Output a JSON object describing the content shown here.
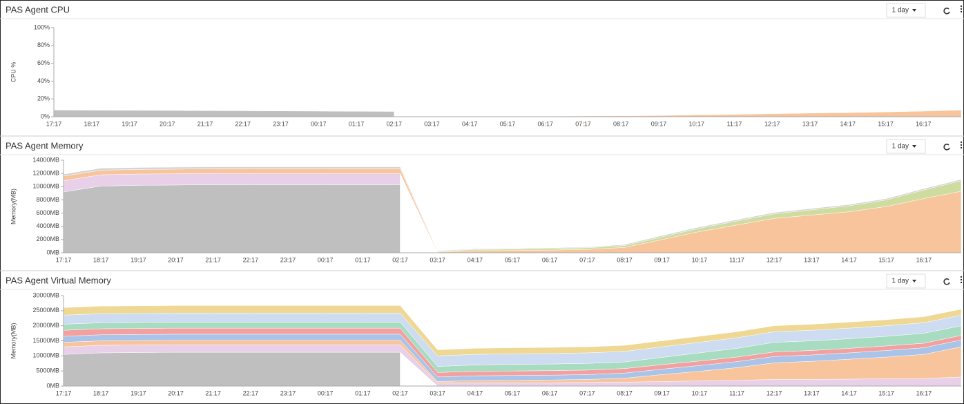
{
  "chart_data": [
    {
      "type": "area",
      "stacked": true,
      "title": "PAS Agent CPU",
      "y_label": "CPU %",
      "range": "1 day",
      "categories": [
        "17:17",
        "18:17",
        "19:17",
        "20:17",
        "21:17",
        "22:17",
        "23:17",
        "00:17",
        "01:17",
        "02:17",
        "03:17",
        "04:17",
        "05:17",
        "06:17",
        "07:17",
        "08:17",
        "09:17",
        "10:17",
        "11:17",
        "12:17",
        "13:17",
        "14:17",
        "15:17",
        "16:17",
        null
      ],
      "ylim": [
        0,
        100
      ],
      "yticks": [
        {
          "value": 0,
          "label": "0%"
        },
        {
          "value": 20,
          "label": "20%"
        },
        {
          "value": 40,
          "label": "40%"
        },
        {
          "value": 60,
          "label": "60%"
        },
        {
          "value": 80,
          "label": "80%"
        },
        {
          "value": 100,
          "label": "100%"
        }
      ],
      "grid": false,
      "series": [
        {
          "color": "#bfbfbf",
          "values": [
            7.5,
            7.3,
            7.2,
            7,
            6.8,
            6.6,
            6.4,
            6.2,
            6,
            5.8,
            null,
            null,
            null,
            null,
            null,
            null,
            null,
            null,
            null,
            null,
            null,
            null,
            null,
            null,
            null
          ]
        },
        {
          "color": "#f8c49c",
          "values": [
            null,
            null,
            null,
            null,
            null,
            null,
            null,
            null,
            null,
            null,
            0.3,
            0.4,
            0.5,
            0.6,
            0.8,
            1,
            1.3,
            2,
            2.6,
            3.3,
            4,
            4.6,
            5.3,
            6.2,
            7.5
          ]
        }
      ]
    },
    {
      "type": "area",
      "stacked": true,
      "title": "PAS Agent Memory",
      "y_label": "Memory(MB)",
      "range": "1 day",
      "categories": [
        "17:17",
        "18:17",
        "19:17",
        "20:17",
        "21:17",
        "22:17",
        "23:17",
        "00:17",
        "01:17",
        "02:17",
        "03:17",
        "04:17",
        "05:17",
        "06:17",
        "07:17",
        "08:17",
        "09:17",
        "10:17",
        "11:17",
        "12:17",
        "13:17",
        "14:17",
        "15:17",
        "16:17",
        null
      ],
      "ylim": [
        0,
        14000
      ],
      "yticks": [
        {
          "value": 0,
          "label": "0MB"
        },
        {
          "value": 2000,
          "label": "2000MB"
        },
        {
          "value": 4000,
          "label": "4000MB"
        },
        {
          "value": 6000,
          "label": "6000MB"
        },
        {
          "value": 8000,
          "label": "8000MB"
        },
        {
          "value": 10000,
          "label": "10000MB"
        },
        {
          "value": 12000,
          "label": "12000MB"
        },
        {
          "value": 14000,
          "label": "14000MB"
        }
      ],
      "grid": false,
      "series": [
        {
          "color": "#bfbfbf",
          "values": [
            9200,
            10100,
            10200,
            10250,
            10300,
            10300,
            10300,
            10300,
            10300,
            10300,
            null,
            null,
            null,
            null,
            null,
            null,
            null,
            null,
            null,
            null,
            null,
            null,
            null,
            null,
            null
          ]
        },
        {
          "color": "#e8d0e8",
          "values": [
            1700,
            1700,
            1700,
            1700,
            1700,
            1700,
            1700,
            1700,
            1700,
            1700,
            null,
            null,
            null,
            null,
            null,
            null,
            null,
            null,
            null,
            null,
            null,
            null,
            null,
            null,
            null
          ]
        },
        {
          "color": "#f8c49c",
          "values": [
            700,
            700,
            700,
            700,
            700,
            700,
            700,
            700,
            700,
            700,
            100,
            300,
            350,
            400,
            500,
            800,
            2000,
            3200,
            4200,
            5200,
            5700,
            6200,
            7000,
            8200,
            9300
          ]
        },
        {
          "color": "#cfdca0",
          "values": [
            null,
            null,
            null,
            null,
            null,
            null,
            null,
            null,
            null,
            null,
            100,
            200,
            200,
            250,
            250,
            300,
            400,
            500,
            600,
            700,
            800,
            900,
            1000,
            1300,
            1600
          ]
        },
        {
          "color": "#d4d4d4",
          "values": [
            300,
            300,
            300,
            300,
            300,
            300,
            300,
            300,
            300,
            300,
            100,
            100,
            100,
            100,
            100,
            150,
            200,
            200,
            200,
            200,
            200,
            200,
            200,
            200,
            200
          ]
        }
      ]
    },
    {
      "type": "area",
      "stacked": true,
      "title": "PAS Agent Virtual Memory",
      "y_label": "Memory(MB)",
      "range": "1 day",
      "categories": [
        "17:17",
        "18:17",
        "19:17",
        "20:17",
        "21:17",
        "22:17",
        "23:17",
        "00:17",
        "01:17",
        "02:17",
        "03:17",
        "04:17",
        "05:17",
        "06:17",
        "07:17",
        "08:17",
        "09:17",
        "10:17",
        "11:17",
        "12:17",
        "13:17",
        "14:17",
        "15:17",
        "16:17",
        null
      ],
      "ylim": [
        0,
        30000
      ],
      "yticks": [
        {
          "value": 0,
          "label": "0MB"
        },
        {
          "value": 5000,
          "label": "5000MB"
        },
        {
          "value": 10000,
          "label": "10000MB"
        },
        {
          "value": 15000,
          "label": "15000MB"
        },
        {
          "value": 20000,
          "label": "20000MB"
        },
        {
          "value": 25000,
          "label": "25000MB"
        },
        {
          "value": 30000,
          "label": "30000MB"
        }
      ],
      "grid": false,
      "series": [
        {
          "color": "#bfbfbf",
          "values": [
            10500,
            11000,
            11100,
            11200,
            11200,
            11200,
            11200,
            11200,
            11200,
            11200,
            null,
            null,
            null,
            null,
            null,
            null,
            null,
            null,
            null,
            null,
            null,
            null,
            null,
            null,
            null
          ]
        },
        {
          "color": "#e8d0e8",
          "values": [
            2500,
            2500,
            2500,
            2500,
            2500,
            2500,
            2500,
            2500,
            2500,
            2500,
            1000,
            1100,
            1100,
            1100,
            1200,
            1300,
            1500,
            1700,
            1900,
            2200,
            2200,
            2300,
            2400,
            2500,
            3000
          ]
        },
        {
          "color": "#f8c49c",
          "values": [
            1500,
            1500,
            1500,
            1500,
            1500,
            1500,
            1500,
            1500,
            1500,
            1500,
            500,
            700,
            800,
            900,
            1000,
            1300,
            2300,
            3200,
            4200,
            5500,
            6000,
            6600,
            7200,
            8000,
            10000
          ]
        },
        {
          "color": "#a9c4e8",
          "values": [
            2000,
            2000,
            2000,
            2000,
            2000,
            2000,
            2000,
            2000,
            2000,
            2000,
            1500,
            1600,
            1600,
            1600,
            1600,
            1700,
            1800,
            1900,
            2000,
            2100,
            2100,
            2100,
            2200,
            2200,
            2300
          ]
        },
        {
          "color": "#f2a0a0",
          "values": [
            2000,
            2000,
            2000,
            2000,
            2000,
            2000,
            2000,
            2000,
            2000,
            2000,
            1500,
            1500,
            1500,
            1500,
            1500,
            1500,
            1500,
            1500,
            1500,
            1500,
            1500,
            1500,
            1500,
            1500,
            1500
          ]
        },
        {
          "color": "#a8dcc0",
          "values": [
            2000,
            2000,
            2000,
            2000,
            2000,
            2000,
            2000,
            2000,
            2000,
            2000,
            2000,
            2100,
            2200,
            2200,
            2200,
            2200,
            2400,
            2700,
            2900,
            3200,
            3200,
            3200,
            3200,
            3300,
            3200
          ]
        },
        {
          "color": "#cddcf0",
          "values": [
            3000,
            3000,
            3000,
            3000,
            3000,
            3000,
            3000,
            3000,
            3000,
            3000,
            3500,
            3500,
            3500,
            3500,
            3500,
            3500,
            3500,
            3500,
            3500,
            3500,
            3500,
            3500,
            3500,
            3500,
            3500
          ]
        },
        {
          "color": "#efd894",
          "values": [
            2500,
            2500,
            2500,
            2500,
            2500,
            2500,
            2500,
            2500,
            2500,
            2500,
            2000,
            2000,
            2000,
            2000,
            2000,
            2000,
            2000,
            2000,
            2000,
            2000,
            2000,
            2000,
            2000,
            2000,
            2000
          ]
        }
      ]
    }
  ]
}
